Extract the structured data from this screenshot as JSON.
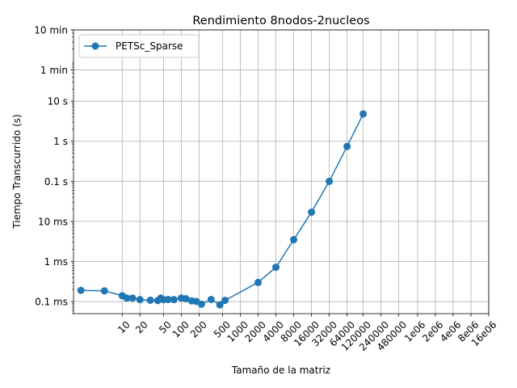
{
  "chart_data": {
    "type": "line",
    "title": "Rendimiento 8nodos-2nucleos",
    "xlabel": "Tamaño de la matriz",
    "ylabel": "Tiempo Transcurrido (s)",
    "x_scale": "log",
    "y_scale": "log",
    "grid": true,
    "legend_position": "top-left",
    "x_ticks": [
      {
        "value": 10,
        "label": "10"
      },
      {
        "value": 20,
        "label": "20"
      },
      {
        "value": 50,
        "label": "50"
      },
      {
        "value": 100,
        "label": "100"
      },
      {
        "value": 200,
        "label": "200"
      },
      {
        "value": 500,
        "label": "500"
      },
      {
        "value": 1000,
        "label": "1000"
      },
      {
        "value": 2000,
        "label": "2000"
      },
      {
        "value": 4000,
        "label": "4000"
      },
      {
        "value": 8000,
        "label": "8000"
      },
      {
        "value": 16000,
        "label": "16000"
      },
      {
        "value": 32000,
        "label": "32000"
      },
      {
        "value": 64000,
        "label": "64000"
      },
      {
        "value": 120000,
        "label": "120000"
      },
      {
        "value": 240000,
        "label": "240000"
      },
      {
        "value": 480000,
        "label": "480000"
      },
      {
        "value": 1000000,
        "label": "1e06"
      },
      {
        "value": 2000000,
        "label": "2e06"
      },
      {
        "value": 4000000,
        "label": "4e06"
      },
      {
        "value": 8000000,
        "label": "8e06"
      },
      {
        "value": 16000000,
        "label": "16e06"
      }
    ],
    "y_ticks": [
      {
        "value": 0.0001,
        "label": "0.1 ms"
      },
      {
        "value": 0.001,
        "label": "1 ms"
      },
      {
        "value": 0.01,
        "label": "10 ms"
      },
      {
        "value": 0.1,
        "label": "0.1 s"
      },
      {
        "value": 1,
        "label": "1 s"
      },
      {
        "value": 10,
        "label": "10 s"
      },
      {
        "value": 60,
        "label": "1 min"
      },
      {
        "value": 600,
        "label": "10 min"
      }
    ],
    "ylim": [
      5e-05,
      600
    ],
    "xlim": [
      1.5,
      16000000
    ],
    "series": [
      {
        "name": "PETSc_Sparse",
        "color": "#1f77b4",
        "marker": "circle",
        "x": [
          2,
          5,
          10,
          12,
          15,
          20,
          30,
          40,
          45,
          50,
          60,
          75,
          100,
          120,
          150,
          180,
          220,
          320,
          450,
          550,
          2000,
          4000,
          8000,
          16000,
          32000,
          64000,
          120000
        ],
        "y": [
          0.00019,
          0.000185,
          0.00014,
          0.000122,
          0.000122,
          0.000112,
          0.000108,
          0.000106,
          0.000122,
          0.000112,
          0.000113,
          0.000112,
          0.000122,
          0.000118,
          0.000104,
          0.000101,
          8.6e-05,
          0.000113,
          8.3e-05,
          0.000107,
          0.0003,
          0.00072,
          0.0035,
          0.017,
          0.1,
          0.74,
          4.8
        ]
      }
    ]
  }
}
